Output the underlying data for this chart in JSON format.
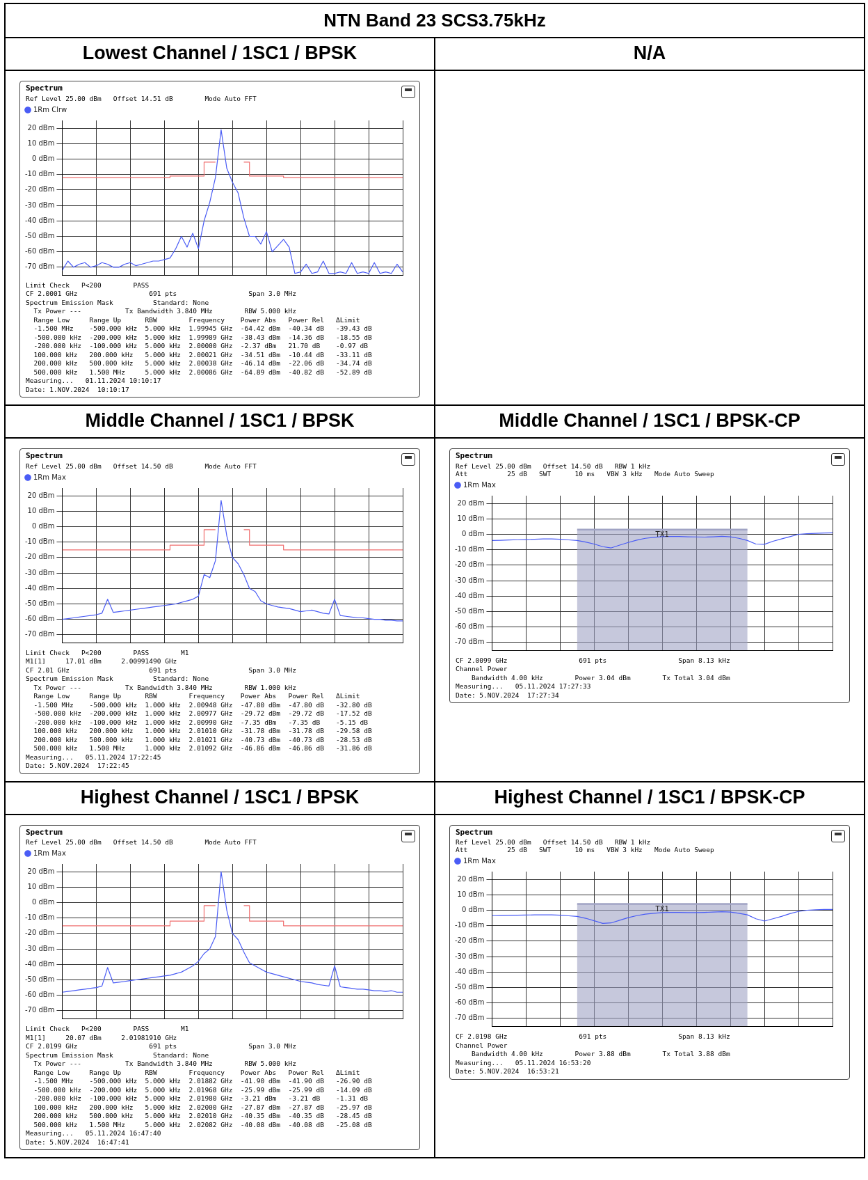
{
  "chart_data": [
    {
      "type": "other",
      "title": "NTN Band 23 SCS3.75kHz"
    },
    {
      "type": "line",
      "title": "Lowest Channel / 1SC1 / BPSK",
      "subtitle": "Ref Level 25.00 dBm   Offset 14.51 dB        Mode Auto FFT",
      "legend": "top left",
      "grid": true,
      "tick_labels": "y",
      "categories": [
        null,
        null,
        null,
        null,
        null,
        null,
        null,
        null,
        null,
        null,
        null,
        null,
        null,
        null,
        null,
        null,
        null,
        null,
        null,
        null,
        null,
        null,
        null,
        null,
        null,
        null,
        null,
        null,
        null,
        null,
        null,
        null,
        null,
        null,
        null,
        null,
        null,
        null,
        null,
        null,
        null,
        null,
        null,
        null,
        null,
        null,
        null,
        null,
        null,
        null,
        null,
        null,
        null,
        null,
        null,
        null,
        null,
        null,
        null,
        null,
        null
      ],
      "ylim": [
        -75,
        25
      ],
      "yticks": [
        {
          "value": 20,
          "label": "20 dBm"
        },
        {
          "value": 10,
          "label": "10 dBm"
        },
        {
          "value": 0,
          "label": "0 dBm"
        },
        {
          "value": -10,
          "label": "-10 dBm"
        },
        {
          "value": -20,
          "label": "-20 dBm"
        },
        {
          "value": -30,
          "label": "-30 dBm"
        },
        {
          "value": -40,
          "label": "-40 dBm"
        },
        {
          "value": -50,
          "label": "-50 dBm"
        },
        {
          "value": -60,
          "label": "-60 dBm"
        },
        {
          "value": -70,
          "label": "-70 dBm"
        }
      ],
      "series": [
        {
          "name": "1Rm Clrw",
          "color": "#4a5cf5",
          "values": [
            -72,
            -66,
            -70,
            -68,
            -67,
            -70,
            -69,
            -67,
            -68,
            -70,
            -70,
            -68,
            -67,
            -69,
            -68,
            -67,
            -66,
            -66,
            -65,
            -64,
            -58,
            -50,
            -57,
            -48,
            -58,
            -40,
            -28,
            -12,
            19,
            -6,
            -15,
            -22,
            -38,
            -50,
            -50,
            -55,
            -47,
            -60,
            -56,
            -52,
            -57,
            -74,
            -73,
            -68,
            -74,
            -73,
            -66,
            -74,
            -74,
            -73,
            -74,
            -67,
            -74,
            -73,
            -74,
            -67,
            -74,
            -73,
            -74,
            -68,
            -73
          ]
        },
        {
          "type": "step",
          "color": "#f07070",
          "values": [
            -12,
            -12,
            -12,
            -12,
            -12,
            -12,
            -12,
            -12,
            -12,
            -12,
            -12,
            -12,
            -12,
            -12,
            -12,
            -12,
            -12,
            -12,
            -12,
            -12,
            -11,
            -11,
            -11,
            -11,
            -11,
            -11,
            -2,
            -2,
            null,
            null,
            null,
            null,
            -2,
            -2,
            -11,
            -11,
            -11,
            -11,
            -11,
            -11,
            -12,
            -12,
            -12,
            -12,
            -12,
            -12,
            -12,
            -12,
            -12,
            -12,
            -12,
            -12,
            -12,
            -12,
            -12,
            -12,
            -12,
            -12,
            -12,
            -12,
            -12
          ]
        }
      ],
      "annotations": [
        "Spectrum",
        "Limit Check   P<200        PASS",
        "CF 2.0001 GHz                  691 pts                  Span 3.0 MHz",
        "Spectrum Emission Mask          Standard: None",
        "  Tx Power ---           Tx Bandwidth 3.840 MHz        RBW 5.000 kHz",
        "  Range Low     Range Up      RBW        Frequency    Power Abs   Power Rel   ΔLimit",
        "  -1.500 MHz    -500.000 kHz  5.000 kHz  1.99945 GHz  -64.42 dBm  -40.34 dB   -39.43 dB",
        "  -500.000 kHz  -200.000 kHz  5.000 kHz  1.99989 GHz  -38.43 dBm  -14.36 dB   -18.55 dB",
        "  -200.000 kHz  -100.000 kHz  5.000 kHz  2.00000 GHz  -2.37 dBm   21.70 dB    -0.97 dB",
        "  100.000 kHz   200.000 kHz   5.000 kHz  2.00021 GHz  -34.51 dBm  -10.44 dB   -33.11 dB",
        "  200.000 kHz   500.000 kHz   5.000 kHz  2.00038 GHz  -46.14 dBm  -22.06 dB   -34.74 dB",
        "  500.000 kHz   1.500 MHz     5.000 kHz  2.00086 GHz  -64.89 dBm  -40.82 dB   -52.89 dB",
        "Measuring...   01.11.2024 10:10:17",
        "Date: 1.NOV.2024  10:10:17"
      ]
    },
    {
      "type": "other",
      "title": "N/A"
    },
    {
      "type": "line",
      "title": "Middle Channel / 1SC1 / BPSK",
      "subtitle": "Ref Level 25.00 dBm   Offset 14.50 dB        Mode Auto FFT",
      "legend": "top left",
      "grid": true,
      "tick_labels": "y",
      "categories": [
        null,
        null,
        null,
        null,
        null,
        null,
        null,
        null,
        null,
        null,
        null,
        null,
        null,
        null,
        null,
        null,
        null,
        null,
        null,
        null,
        null,
        null,
        null,
        null,
        null,
        null,
        null,
        null,
        null,
        null,
        null,
        null,
        null,
        null,
        null,
        null,
        null,
        null,
        null,
        null,
        null,
        null,
        null,
        null,
        null,
        null,
        null,
        null,
        null,
        null,
        null,
        null,
        null,
        null,
        null,
        null,
        null,
        null,
        null,
        null,
        null
      ],
      "ylim": [
        -75,
        25
      ],
      "yticks": [
        {
          "value": 20,
          "label": "20 dBm"
        },
        {
          "value": 10,
          "label": "10 dBm"
        },
        {
          "value": 0,
          "label": "0 dBm"
        },
        {
          "value": -10,
          "label": "-10 dBm"
        },
        {
          "value": -20,
          "label": "-20 dBm"
        },
        {
          "value": -30,
          "label": "-30 dBm"
        },
        {
          "value": -40,
          "label": "-40 dBm"
        },
        {
          "value": -50,
          "label": "-50 dBm"
        },
        {
          "value": -60,
          "label": "-60 dBm"
        },
        {
          "value": -70,
          "label": "-70 dBm"
        }
      ],
      "series": [
        {
          "name": "1Rm Max",
          "color": "#4a5cf5",
          "values": [
            -60,
            -59.5,
            -59,
            -58.5,
            -58,
            -57.5,
            -57,
            -56,
            -47,
            -55.5,
            -55,
            -54.5,
            -54,
            -53.5,
            -53,
            -52.5,
            -52,
            -51.5,
            -51,
            -50.5,
            -50,
            -49,
            -48,
            -47,
            -45,
            -31,
            -33,
            -22,
            17,
            -6,
            -20,
            -24,
            -31,
            -40,
            -42,
            -48,
            -50,
            -51,
            -52,
            -52.5,
            -53,
            -54,
            -55,
            -54.5,
            -54,
            -55,
            -56,
            -56.5,
            -47,
            -57.5,
            -58,
            -58.5,
            -59,
            -59,
            -59.5,
            -60,
            -60,
            -60.5,
            -60.5,
            -61,
            -61
          ]
        },
        {
          "type": "step",
          "color": "#f07070",
          "values": [
            -15,
            -15,
            -15,
            -15,
            -15,
            -15,
            -15,
            -15,
            -15,
            -15,
            -15,
            -15,
            -15,
            -15,
            -15,
            -15,
            -15,
            -15,
            -15,
            -15,
            -12,
            -12,
            -12,
            -12,
            -12,
            -12,
            -2,
            -2,
            null,
            null,
            null,
            null,
            -2,
            -2,
            -12,
            -12,
            -12,
            -12,
            -12,
            -12,
            -15,
            -15,
            -15,
            -15,
            -15,
            -15,
            -15,
            -15,
            -15,
            -15,
            -15,
            -15,
            -15,
            -15,
            -15,
            -15,
            -15,
            -15,
            -15,
            -15,
            -15
          ]
        }
      ],
      "annotations": [
        "Spectrum",
        "Limit Check   P<200        PASS        M1",
        "M1[1]     17.01 dBm     2.00991490 GHz",
        "CF 2.01 GHz                    691 pts                  Span 3.0 MHz",
        "Spectrum Emission Mask          Standard: None",
        "  Tx Power ---           Tx Bandwidth 3.840 MHz        RBW 1.000 kHz",
        "  Range Low     Range Up      RBW        Frequency    Power Abs   Power Rel   ΔLimit",
        "  -1.500 MHz    -500.000 kHz  1.000 kHz  2.00948 GHz  -47.80 dBm  -47.80 dB   -32.80 dB",
        "  -500.000 kHz  -200.000 kHz  1.000 kHz  2.00977 GHz  -29.72 dBm  -29.72 dB   -17.52 dB",
        "  -200.000 kHz  -100.000 kHz  1.000 kHz  2.00990 GHz  -7.35 dBm   -7.35 dB    -5.15 dB",
        "  100.000 kHz   200.000 kHz   1.000 kHz  2.01010 GHz  -31.78 dBm  -31.78 dB   -29.58 dB",
        "  200.000 kHz   500.000 kHz   1.000 kHz  2.01021 GHz  -40.73 dBm  -40.73 dB   -28.53 dB",
        "  500.000 kHz   1.500 MHz     1.000 kHz  2.01092 GHz  -46.86 dBm  -46.86 dB   -31.86 dB",
        "Measuring...   05.11.2024 17:22:45",
        "Date: 5.NOV.2024  17:22:45"
      ]
    },
    {
      "type": "line",
      "title": "Middle Channel / 1SC1 / BPSK-CP",
      "subtitle": "Ref Level 25.00 dBm   Offset 14.50 dB   RBW 1 kHz\nAtt          25 dB   SWT      10 ms   VBW 3 kHz   Mode Auto Sweep",
      "legend": "top left",
      "grid": true,
      "tick_labels": "y",
      "categories": [
        null,
        null,
        null,
        null,
        null,
        null,
        null,
        null,
        null,
        null,
        null,
        null,
        null,
        null,
        null,
        null,
        null,
        null,
        null,
        null,
        null,
        null,
        null,
        null,
        null,
        null,
        null,
        null,
        null,
        null,
        null,
        null,
        null,
        null,
        null,
        null,
        null,
        null,
        null,
        null,
        null
      ],
      "ylim": [
        -75,
        25
      ],
      "yticks": [
        {
          "value": 20,
          "label": "20 dBm"
        },
        {
          "value": 10,
          "label": "10 dBm"
        },
        {
          "value": 0,
          "label": "0 dBm"
        },
        {
          "value": -10,
          "label": "-10 dBm"
        },
        {
          "value": -20,
          "label": "-20 dBm"
        },
        {
          "value": -30,
          "label": "-30 dBm"
        },
        {
          "value": -40,
          "label": "-40 dBm"
        },
        {
          "value": -50,
          "label": "-50 dBm"
        },
        {
          "value": -60,
          "label": "-60 dBm"
        },
        {
          "value": -70,
          "label": "-70 dBm"
        }
      ],
      "series": [
        {
          "name": "1Rm Max",
          "color": "#4a5cf5",
          "values": [
            -4,
            -3.9,
            -3.7,
            -3.5,
            -3.4,
            -3.2,
            -3,
            -3,
            -3.2,
            -3.6,
            -4,
            -5,
            -6.3,
            -8,
            -8.8,
            -7,
            -5.3,
            -3.8,
            -2.6,
            -2,
            -1.5,
            -1.4,
            -1.4,
            -1.6,
            -1.7,
            -1.8,
            -1.6,
            -1.3,
            -1.6,
            -2.6,
            -4,
            -6.3,
            -6.5,
            -4.5,
            -3,
            -1.5,
            0,
            0.4,
            0.6,
            0.8,
            1
          ]
        },
        {
          "name": "TX1",
          "color": "#a0a3c4",
          "values": [
            null,
            null,
            null,
            null,
            null,
            null,
            null,
            null,
            null,
            null,
            3,
            3,
            3,
            3,
            3,
            3,
            3,
            3,
            3,
            3,
            3,
            3,
            3,
            3,
            3,
            3,
            3,
            3,
            3,
            3,
            3,
            null,
            null,
            null,
            null,
            null,
            null,
            null,
            null,
            null,
            null
          ],
          "lower": [
            null,
            null,
            null,
            null,
            null,
            null,
            null,
            null,
            null,
            null,
            -75,
            -75,
            -75,
            -75,
            -75,
            -75,
            -75,
            -75,
            -75,
            -75,
            -75,
            -75,
            -75,
            -75,
            -75,
            -75,
            -75,
            -75,
            -75,
            -75,
            -75,
            null,
            null,
            null,
            null,
            null,
            null,
            null,
            null,
            null,
            null
          ],
          "upper": [
            null,
            null,
            null,
            null,
            null,
            null,
            null,
            null,
            null,
            null,
            3,
            3,
            3,
            3,
            3,
            3,
            3,
            3,
            3,
            3,
            3,
            3,
            3,
            3,
            3,
            3,
            3,
            3,
            3,
            3,
            3,
            null,
            null,
            null,
            null,
            null,
            null,
            null,
            null,
            null,
            null
          ]
        }
      ],
      "annotations": [
        "Spectrum",
        "CF 2.0099 GHz                  691 pts                  Span 8.13 kHz",
        "Channel Power",
        "    Bandwidth 4.00 kHz        Power 3.04 dBm        Tx Total 3.04 dBm",
        "Measuring...   05.11.2024 17:27:33",
        "Date: 5.NOV.2024  17:27:34"
      ]
    },
    {
      "type": "line",
      "title": "Highest Channel / 1SC1 / BPSK",
      "subtitle": "Ref Level 25.00 dBm   Offset 14.50 dB        Mode Auto FFT",
      "legend": "top left",
      "grid": true,
      "tick_labels": "y",
      "categories": [
        null,
        null,
        null,
        null,
        null,
        null,
        null,
        null,
        null,
        null,
        null,
        null,
        null,
        null,
        null,
        null,
        null,
        null,
        null,
        null,
        null,
        null,
        null,
        null,
        null,
        null,
        null,
        null,
        null,
        null,
        null,
        null,
        null,
        null,
        null,
        null,
        null,
        null,
        null,
        null,
        null,
        null,
        null,
        null,
        null,
        null,
        null,
        null,
        null,
        null,
        null,
        null,
        null,
        null,
        null,
        null,
        null,
        null,
        null,
        null,
        null
      ],
      "ylim": [
        -75,
        25
      ],
      "yticks": [
        {
          "value": 20,
          "label": "20 dBm"
        },
        {
          "value": 10,
          "label": "10 dBm"
        },
        {
          "value": 0,
          "label": "0 dBm"
        },
        {
          "value": -10,
          "label": "-10 dBm"
        },
        {
          "value": -20,
          "label": "-20 dBm"
        },
        {
          "value": -30,
          "label": "-30 dBm"
        },
        {
          "value": -40,
          "label": "-40 dBm"
        },
        {
          "value": -50,
          "label": "-50 dBm"
        },
        {
          "value": -60,
          "label": "-60 dBm"
        },
        {
          "value": -70,
          "label": "-70 dBm"
        }
      ],
      "series": [
        {
          "name": "1Rm Max",
          "color": "#4a5cf5",
          "values": [
            -58,
            -57.5,
            -57,
            -56.5,
            -56,
            -55.5,
            -55,
            -54,
            -42,
            -52,
            -51.5,
            -51,
            -50.5,
            -50,
            -49.5,
            -49,
            -48.5,
            -48,
            -47.5,
            -47,
            -46,
            -45,
            -43,
            -41,
            -38,
            -33,
            -30,
            -22,
            20,
            -5,
            -20,
            -24,
            -32,
            -39,
            -41,
            -43,
            -45,
            -46,
            -47,
            -48,
            -49,
            -50,
            -51,
            -51.5,
            -52,
            -53,
            -53.5,
            -54,
            -41,
            -54.5,
            -55,
            -55.5,
            -56,
            -56,
            -56.5,
            -57,
            -57,
            -57.5,
            -57,
            -58,
            -58
          ]
        },
        {
          "type": "step",
          "color": "#f07070",
          "values": [
            -15,
            -15,
            -15,
            -15,
            -15,
            -15,
            -15,
            -15,
            -15,
            -15,
            -15,
            -15,
            -15,
            -15,
            -15,
            -15,
            -15,
            -15,
            -15,
            -15,
            -12,
            -12,
            -12,
            -12,
            -12,
            -12,
            -2,
            -2,
            null,
            null,
            null,
            null,
            -2,
            -2,
            -12,
            -12,
            -12,
            -12,
            -12,
            -12,
            -15,
            -15,
            -15,
            -15,
            -15,
            -15,
            -15,
            -15,
            -15,
            -15,
            -15,
            -15,
            -15,
            -15,
            -15,
            -15,
            -15,
            -15,
            -15,
            -15,
            -15
          ]
        }
      ],
      "annotations": [
        "Spectrum",
        "Limit Check   P<200        PASS        M1",
        "M1[1]     20.07 dBm     2.01981910 GHz",
        "CF 2.0199 GHz                  691 pts                  Span 3.0 MHz",
        "Spectrum Emission Mask          Standard: None",
        "  Tx Power ---           Tx Bandwidth 3.840 MHz        RBW 5.000 kHz",
        "  Range Low     Range Up      RBW        Frequency    Power Abs   Power Rel   ΔLimit",
        "  -1.500 MHz    -500.000 kHz  5.000 kHz  2.01882 GHz  -41.90 dBm  -41.90 dB   -26.90 dB",
        "  -500.000 kHz  -200.000 kHz  5.000 kHz  2.01968 GHz  -25.99 dBm  -25.99 dB   -14.09 dB",
        "  -200.000 kHz  -100.000 kHz  5.000 kHz  2.01980 GHz  -3.21 dBm   -3.21 dB    -1.31 dB",
        "  100.000 kHz   200.000 kHz   5.000 kHz  2.02000 GHz  -27.87 dBm  -27.87 dB   -25.97 dB",
        "  200.000 kHz   500.000 kHz   5.000 kHz  2.02010 GHz  -40.35 dBm  -40.35 dB   -28.45 dB",
        "  500.000 kHz   1.500 MHz     5.000 kHz  2.02082 GHz  -40.08 dBm  -40.08 dB   -25.08 dB",
        "Measuring...   05.11.2024 16:47:40",
        "Date: 5.NOV.2024  16:47:41"
      ]
    },
    {
      "type": "line",
      "title": "Highest Channel / 1SC1 / BPSK-CP",
      "subtitle": "Ref Level 25.00 dBm   Offset 14.50 dB   RBW 1 kHz\nAtt          25 dB   SWT      10 ms   VBW 3 kHz   Mode Auto Sweep",
      "legend": "top left",
      "grid": true,
      "tick_labels": "y",
      "categories": [
        null,
        null,
        null,
        null,
        null,
        null,
        null,
        null,
        null,
        null,
        null,
        null,
        null,
        null,
        null,
        null,
        null,
        null,
        null,
        null,
        null,
        null,
        null,
        null,
        null,
        null,
        null,
        null,
        null,
        null,
        null,
        null,
        null,
        null,
        null,
        null,
        null,
        null,
        null,
        null,
        null
      ],
      "ylim": [
        -75,
        25
      ],
      "yticks": [
        {
          "value": 20,
          "label": "20 dBm"
        },
        {
          "value": 10,
          "label": "10 dBm"
        },
        {
          "value": 0,
          "label": "0 dBm"
        },
        {
          "value": -10,
          "label": "-10 dBm"
        },
        {
          "value": -20,
          "label": "-20 dBm"
        },
        {
          "value": -30,
          "label": "-30 dBm"
        },
        {
          "value": -40,
          "label": "-40 dBm"
        },
        {
          "value": -50,
          "label": "-50 dBm"
        },
        {
          "value": -60,
          "label": "-60 dBm"
        },
        {
          "value": -70,
          "label": "-70 dBm"
        }
      ],
      "series": [
        {
          "name": "1Rm Max",
          "color": "#4a5cf5",
          "values": [
            -3.5,
            -3.4,
            -3.3,
            -3.2,
            -3.1,
            -3,
            -3,
            -3,
            -3.2,
            -3.6,
            -4,
            -5.2,
            -6.8,
            -8.5,
            -8.2,
            -6.5,
            -4.8,
            -3.5,
            -2.5,
            -2,
            -1.5,
            -1.4,
            -1.4,
            -1.5,
            -1.5,
            -1.4,
            -1.2,
            -1,
            -1.2,
            -2,
            -3,
            -5.5,
            -7,
            -5.5,
            -4,
            -2.2,
            -0.8,
            0,
            0.3,
            0.5,
            0.5
          ]
        },
        {
          "name": "TX1",
          "color": "#a0a3c4",
          "values": [
            null,
            null,
            null,
            null,
            null,
            null,
            null,
            null,
            null,
            null,
            4,
            4,
            4,
            4,
            4,
            4,
            4,
            4,
            4,
            4,
            4,
            4,
            4,
            4,
            4,
            4,
            4,
            4,
            4,
            4,
            4,
            null,
            null,
            null,
            null,
            null,
            null,
            null,
            null,
            null,
            null
          ],
          "lower": [
            null,
            null,
            null,
            null,
            null,
            null,
            null,
            null,
            null,
            null,
            -75,
            -75,
            -75,
            -75,
            -75,
            -75,
            -75,
            -75,
            -75,
            -75,
            -75,
            -75,
            -75,
            -75,
            -75,
            -75,
            -75,
            -75,
            -75,
            -75,
            -75,
            null,
            null,
            null,
            null,
            null,
            null,
            null,
            null,
            null,
            null
          ],
          "upper": [
            null,
            null,
            null,
            null,
            null,
            null,
            null,
            null,
            null,
            null,
            4,
            4,
            4,
            4,
            4,
            4,
            4,
            4,
            4,
            4,
            4,
            4,
            4,
            4,
            4,
            4,
            4,
            4,
            4,
            4,
            4,
            null,
            null,
            null,
            null,
            null,
            null,
            null,
            null,
            null,
            null
          ]
        }
      ],
      "annotations": [
        "Spectrum",
        "CF 2.0198 GHz                  691 pts                  Span 8.13 kHz",
        "Channel Power",
        "    Bandwidth 4.00 kHz        Power 3.88 dBm        Tx Total 3.88 dBm",
        "Measuring...   05.11.2024 16:53:20",
        "Date: 5.NOV.2024  16:53:21"
      ]
    }
  ]
}
